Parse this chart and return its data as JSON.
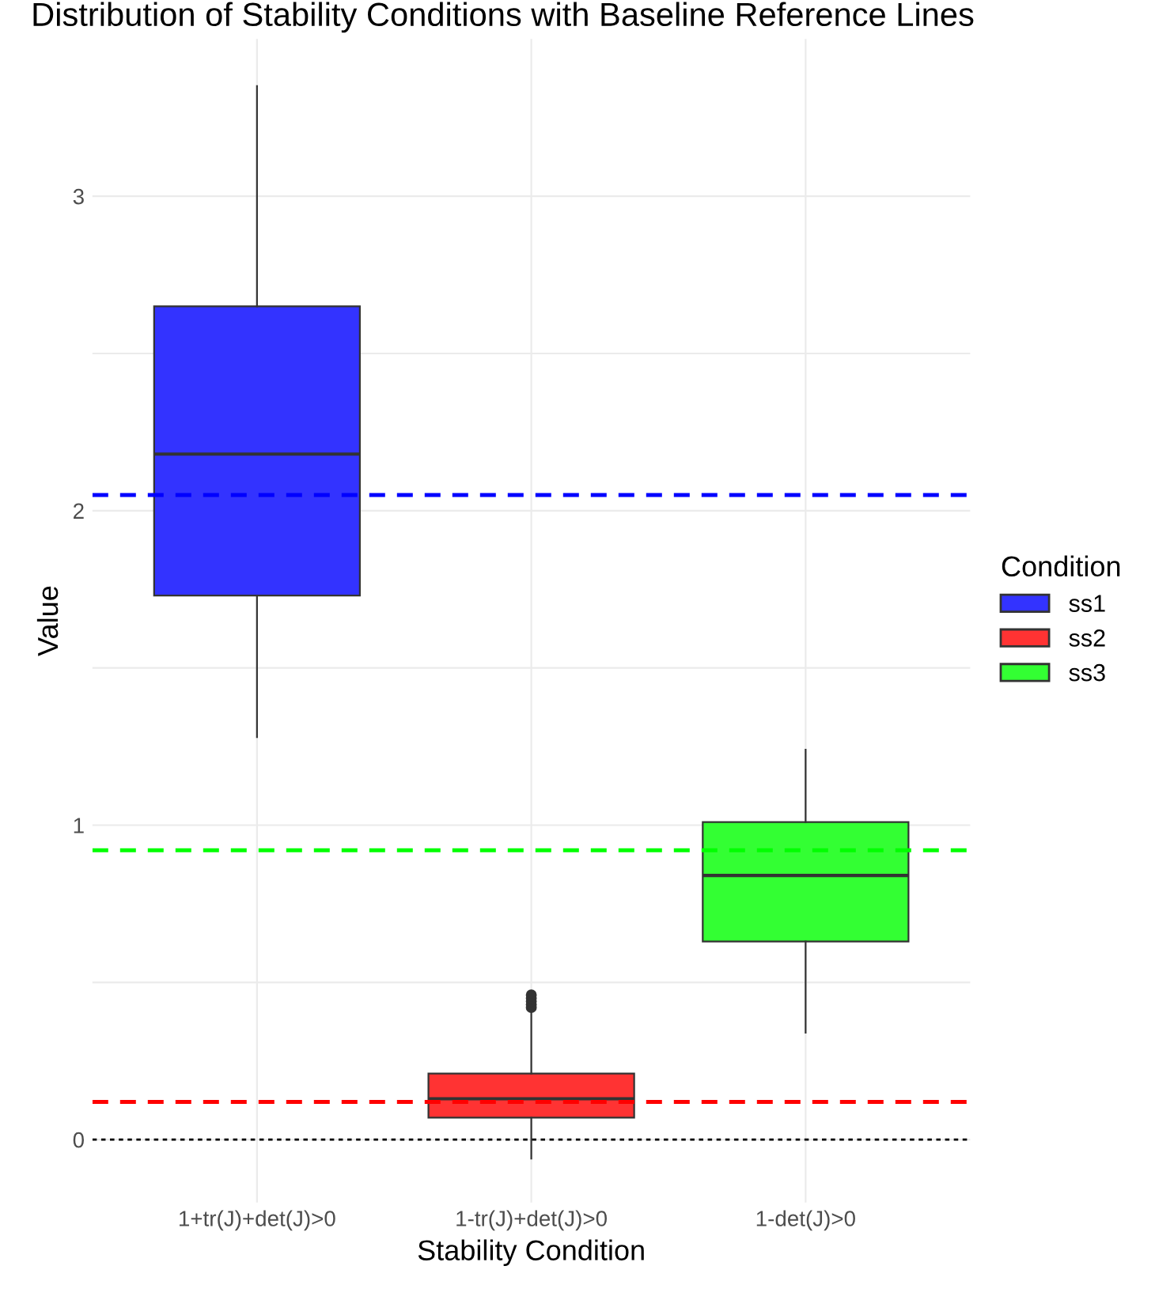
{
  "chart_data": {
    "type": "box",
    "title": "Distribution of Stability Conditions with Baseline Reference Lines",
    "xlabel": "Stability Condition",
    "ylabel": "Value",
    "legend_title": "Condition",
    "categories": [
      "1+tr(J)+det(J)>0",
      "1-tr(J)+det(J)>0",
      "1-det(J)>0"
    ],
    "series": [
      {
        "name": "ss1",
        "color": "#3333ff",
        "boxes": [
          {
            "low": 1.28,
            "q1": 1.73,
            "median": 2.18,
            "q3": 2.65,
            "high": 3.35
          },
          null,
          null
        ]
      },
      {
        "name": "ss2",
        "color": "#ff3333",
        "boxes": [
          null,
          {
            "low": -0.06,
            "q1": 0.07,
            "median": 0.13,
            "q3": 0.21,
            "high": 0.41,
            "outliers": [
              0.42,
              0.43,
              0.44,
              0.45,
              0.46
            ]
          },
          null
        ]
      },
      {
        "name": "ss3",
        "color": "#33ff33",
        "boxes": [
          null,
          null,
          {
            "low": 0.34,
            "q1": 0.63,
            "median": 0.84,
            "q3": 1.01,
            "high": 1.24
          }
        ]
      }
    ],
    "ref_lines": [
      {
        "axis": "y",
        "value": 2.05,
        "color": "#0000ff",
        "line_style": "dashed"
      },
      {
        "axis": "y",
        "value": 0.12,
        "color": "#ff0000",
        "line_style": "dashed"
      },
      {
        "axis": "y",
        "value": 0.92,
        "color": "#00ff00",
        "line_style": "dashed"
      },
      {
        "axis": "y",
        "value": 0,
        "color": "#000000",
        "line_style": "dotted"
      }
    ],
    "ylim": [
      -0.2,
      3.5
    ],
    "yticks": [
      0,
      {
        "value": 0.5,
        "label": null
      },
      1,
      {
        "value": 1.5,
        "label": null
      },
      2,
      {
        "value": 2.5,
        "label": null
      },
      3
    ],
    "grid": true,
    "legend": "right"
  }
}
